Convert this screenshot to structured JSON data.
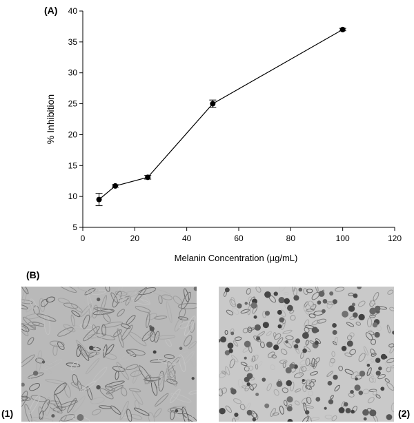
{
  "panel_a_label": "(A)",
  "panel_b_label": "(B)",
  "image_1_label": "(1)",
  "image_2_label": "(2)",
  "chart_data": {
    "type": "line",
    "xlabel": "Melanin Concentration (µg/mL)",
    "ylabel": "% Inhibition",
    "xlim": [
      0,
      120
    ],
    "ylim": [
      5,
      40
    ],
    "xticks": [
      0,
      20,
      40,
      60,
      80,
      100,
      120
    ],
    "yticks": [
      5,
      10,
      15,
      20,
      25,
      30,
      35,
      40
    ],
    "grid": false,
    "series": [
      {
        "x": [
          6.25,
          12.5,
          25,
          50,
          100
        ],
        "y": [
          9.5,
          11.7,
          13.1,
          25.0,
          37.0
        ],
        "error": [
          1.0,
          0.2,
          0.3,
          0.6,
          0.2
        ]
      }
    ]
  },
  "micrographs": [
    {
      "label": "(1)",
      "tone": "#b9b9b9"
    },
    {
      "label": "(2)",
      "tone": "#c9c9c9"
    }
  ]
}
